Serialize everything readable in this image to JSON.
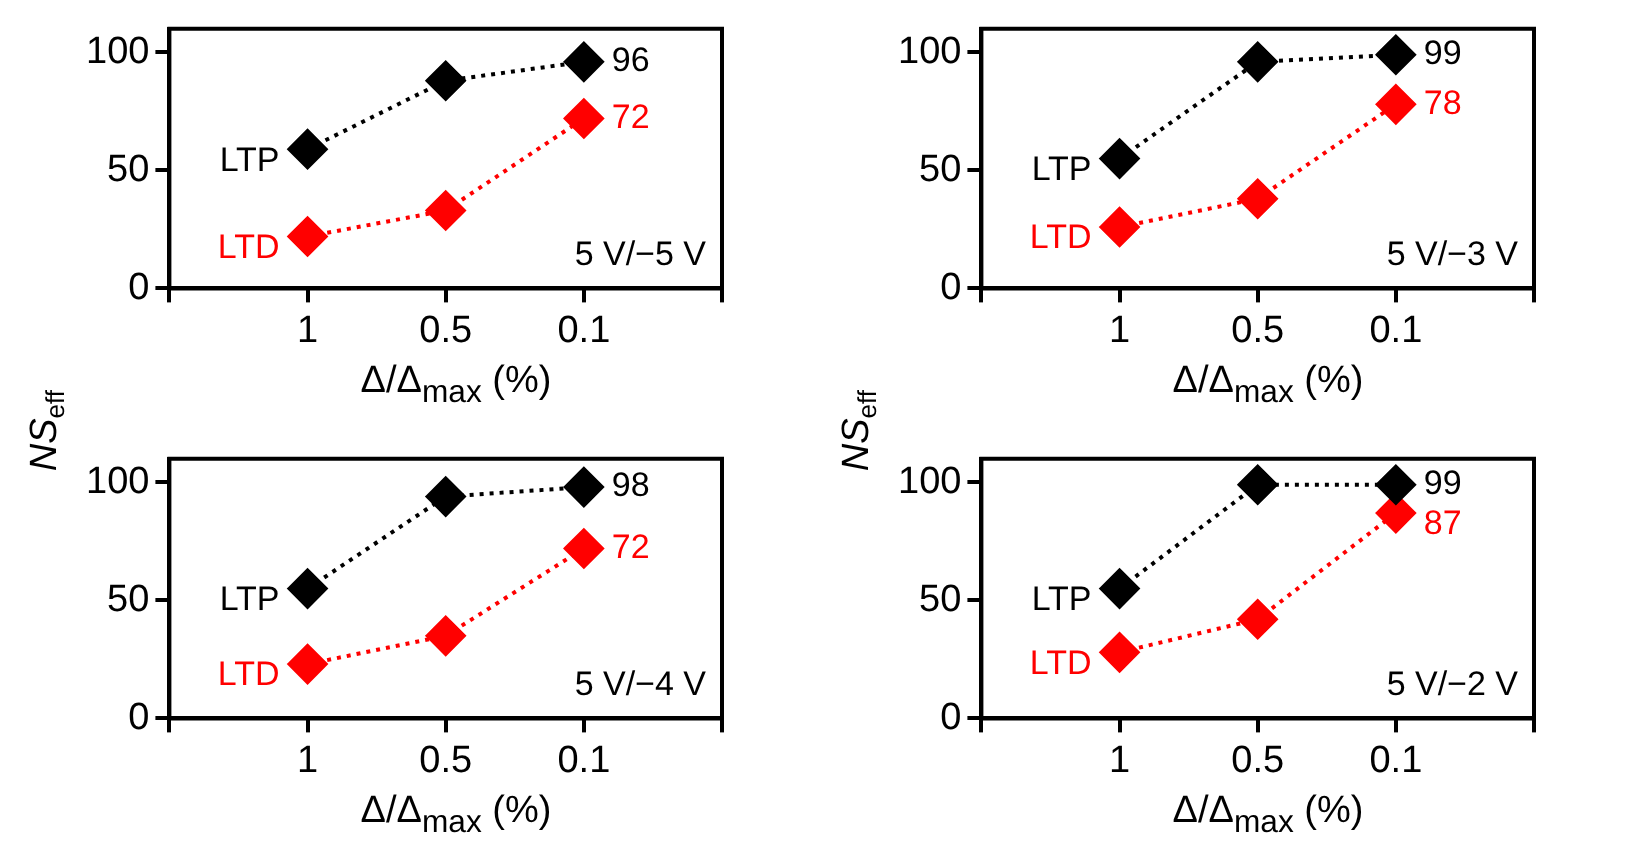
{
  "chart_data": [
    {
      "type": "line",
      "categories": [
        "1",
        "0.5",
        "0.1"
      ],
      "xlabel": "Δ/Δ$_{max}$ (%)",
      "ylabel": "NS$_{eff}$",
      "ylim": [
        0,
        110
      ],
      "yticks": [
        0,
        50,
        100
      ],
      "marker": "diamond",
      "line_style": "dotted",
      "annotations": [
        "5 V/−5 V"
      ],
      "series": [
        {
          "name": "LTP",
          "color": "#000000",
          "values": [
            59,
            88,
            96
          ],
          "value_labels": [
            null,
            null,
            "96"
          ]
        },
        {
          "name": "LTD",
          "color": "#ff0000",
          "values": [
            22,
            33,
            72
          ],
          "value_labels": [
            null,
            null,
            "72"
          ]
        }
      ]
    },
    {
      "type": "line",
      "categories": [
        "1",
        "0.5",
        "0.1"
      ],
      "xlabel": "Δ/Δ$_{max}$ (%)",
      "ylabel": "NS$_{eff}$",
      "ylim": [
        0,
        110
      ],
      "yticks": [
        0,
        50,
        100
      ],
      "marker": "diamond",
      "line_style": "dotted",
      "annotations": [
        "5 V/−3 V"
      ],
      "series": [
        {
          "name": "LTP",
          "color": "#000000",
          "values": [
            55,
            96,
            99
          ],
          "value_labels": [
            null,
            null,
            "99"
          ]
        },
        {
          "name": "LTD",
          "color": "#ff0000",
          "values": [
            26,
            38,
            78
          ],
          "value_labels": [
            null,
            null,
            "78"
          ]
        }
      ]
    },
    {
      "type": "line",
      "categories": [
        "1",
        "0.5",
        "0.1"
      ],
      "xlabel": "Δ/Δ$_{max}$ (%)",
      "ylim": [
        0,
        110
      ],
      "yticks": [
        0,
        50,
        100
      ],
      "marker": "diamond",
      "line_style": "dotted",
      "annotations": [
        "5 V/−4 V"
      ],
      "series": [
        {
          "name": "LTP",
          "color": "#000000",
          "values": [
            55,
            94,
            98
          ],
          "value_labels": [
            null,
            null,
            "98"
          ]
        },
        {
          "name": "LTD",
          "color": "#ff0000",
          "values": [
            23,
            35,
            72
          ],
          "value_labels": [
            null,
            null,
            "72"
          ]
        }
      ]
    },
    {
      "type": "line",
      "categories": [
        "1",
        "0.5",
        "0.1"
      ],
      "xlabel": "Δ/Δ$_{max}$ (%)",
      "ylim": [
        0,
        110
      ],
      "yticks": [
        0,
        50,
        100
      ],
      "marker": "diamond",
      "line_style": "dotted",
      "annotations": [
        "5 V/−2 V"
      ],
      "series": [
        {
          "name": "LTP",
          "color": "#000000",
          "values": [
            55,
            99,
            99
          ],
          "value_labels": [
            null,
            null,
            "99"
          ]
        },
        {
          "name": "LTD",
          "color": "#ff0000",
          "values": [
            28,
            42,
            87
          ],
          "value_labels": [
            null,
            null,
            "87"
          ]
        }
      ]
    }
  ]
}
